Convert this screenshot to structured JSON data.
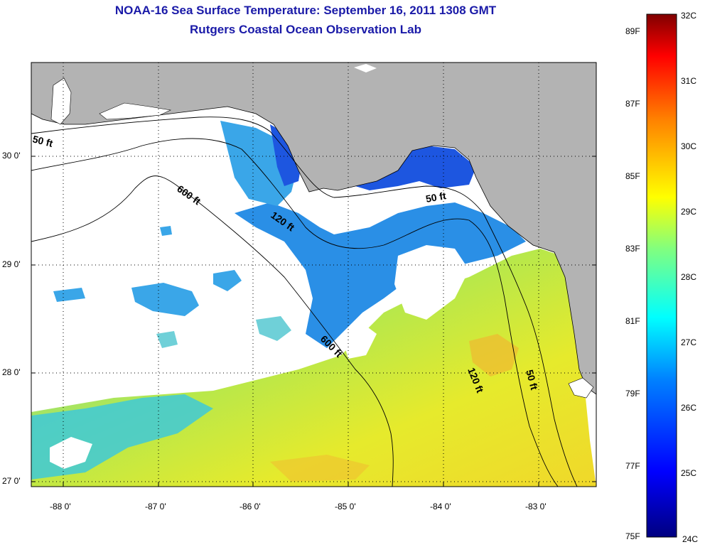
{
  "title": "NOAA-16 Sea Surface Temperature:  September 16, 2011 1308 GMT",
  "subtitle": "Rutgers Coastal Ocean Observation Lab",
  "lat_ticks": [
    "30 0'",
    "29 0'",
    "28 0'",
    "27 0'"
  ],
  "lon_ticks": [
    "-88 0'",
    "-87 0'",
    "-86 0'",
    "-85 0'",
    "-84 0'",
    "-83 0'"
  ],
  "contour_labels": [
    "50 ft",
    "600 ft",
    "120 ft",
    "50 ft",
    "600 ft",
    "120 ft",
    "50 ft"
  ],
  "colorbar": {
    "fahrenheit": [
      "89F",
      "87F",
      "85F",
      "83F",
      "81F",
      "79F",
      "77F",
      "75F"
    ],
    "celsius": [
      "32C",
      "31C",
      "30C",
      "29C",
      "28C",
      "27C",
      "26C",
      "25C",
      "24C"
    ],
    "range_c": [
      24,
      32
    ],
    "colors": [
      "#000080",
      "#0000ff",
      "#0080ff",
      "#00ffff",
      "#80ff80",
      "#ffff00",
      "#ff8000",
      "#ff0000",
      "#800000"
    ]
  },
  "colors": {
    "title": "#1a1aa8",
    "land": "#b3b3b3",
    "cloud": "#ffffff",
    "gulf_warm": "#e3ea2a",
    "shelf_cool": "#2a8fe6",
    "nearshore_cold": "#1d56e0"
  }
}
